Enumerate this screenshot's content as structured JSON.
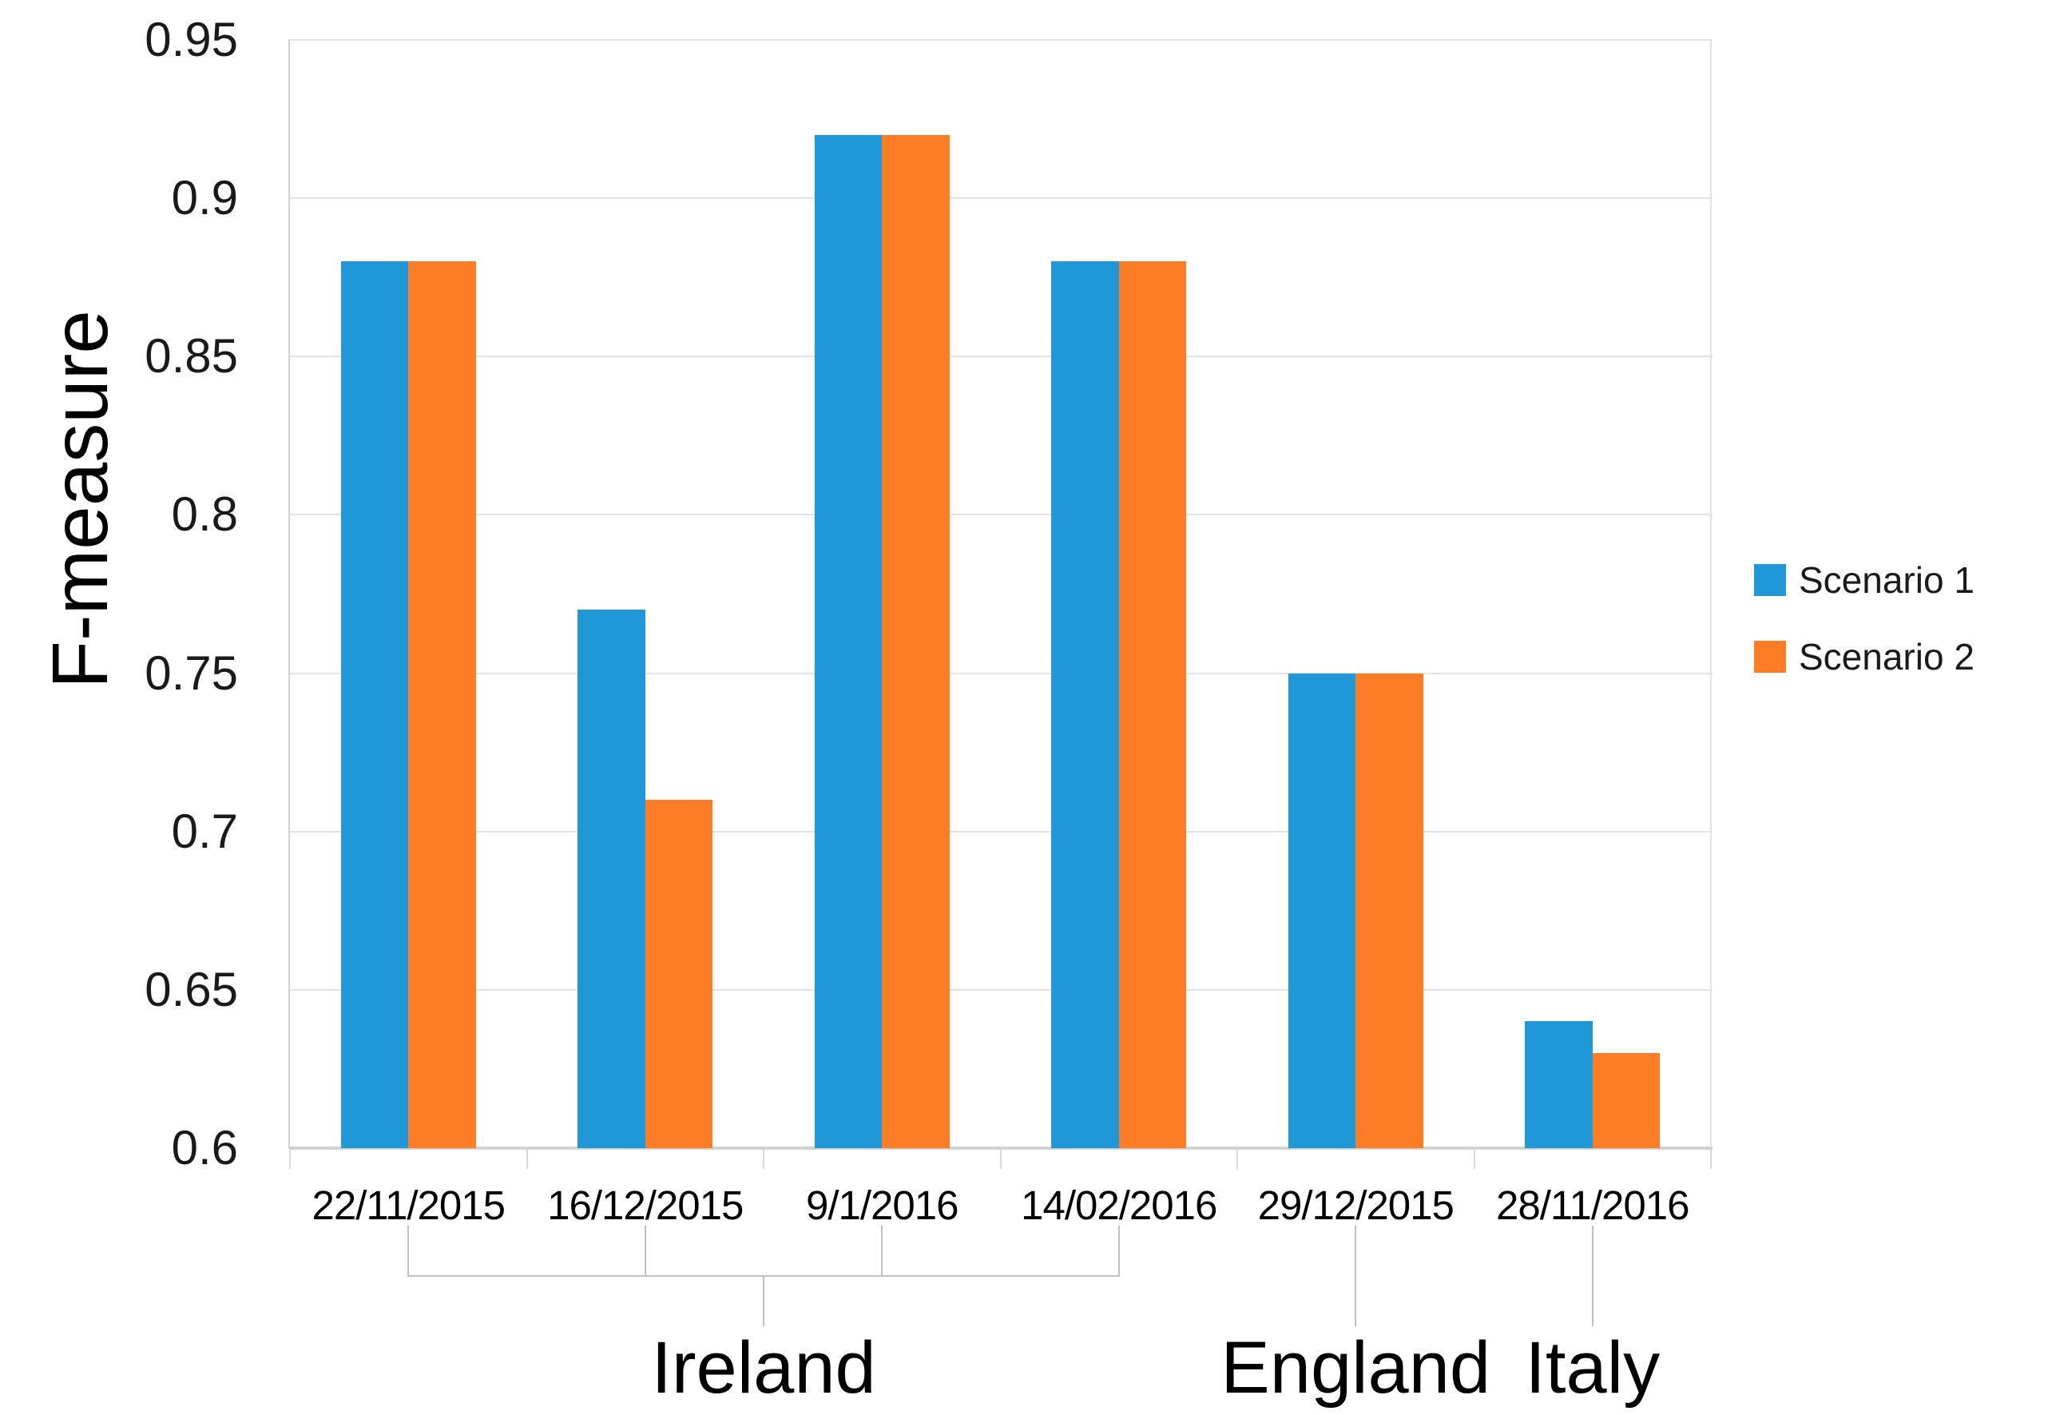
{
  "chart_data": {
    "type": "bar",
    "title": "",
    "xlabel": "",
    "ylabel": "F-measure",
    "categories": [
      "22/11/2015",
      "16/12/2015",
      "9/1/2016",
      "14/02/2016",
      "29/12/2015",
      "28/11/2016"
    ],
    "groups": [
      {
        "label": "Ireland",
        "span": [
          0,
          3
        ]
      },
      {
        "label": "England",
        "span": [
          4,
          4
        ]
      },
      {
        "label": "Italy",
        "span": [
          5,
          5
        ]
      }
    ],
    "series": [
      {
        "name": "Scenario 1",
        "color": "#2097d6",
        "values": [
          0.88,
          0.77,
          0.92,
          0.88,
          0.75,
          0.64
        ]
      },
      {
        "name": "Scenario 2",
        "color": "#fc7d26",
        "values": [
          0.88,
          0.71,
          0.92,
          0.88,
          0.75,
          0.63
        ]
      }
    ],
    "ylim": [
      0.6,
      0.95
    ],
    "ytick_step": 0.05,
    "yticks": [
      "0.95",
      "0.9",
      "0.85",
      "0.8",
      "0.75",
      "0.7",
      "0.65",
      "0.6"
    ],
    "grid": true,
    "legend_position": "right"
  }
}
